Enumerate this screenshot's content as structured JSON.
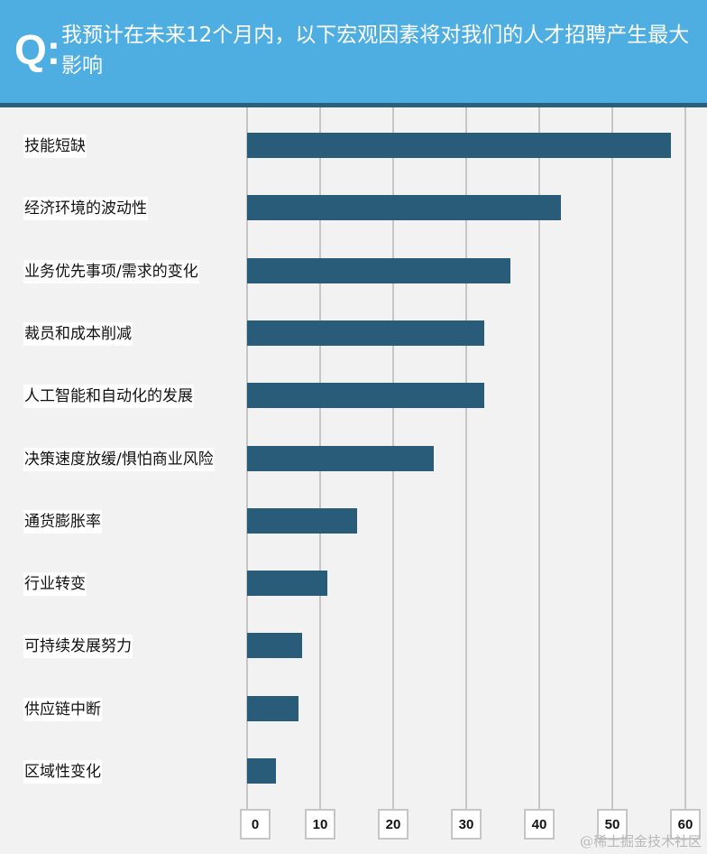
{
  "header": {
    "q_mark": "Q:",
    "title": "我预计在未来12个月内，以下宏观因素将对我们的人才招聘产生最大影响"
  },
  "colors": {
    "header_bg": "#4eaee2",
    "header_border": "#2a5f7f",
    "bar": "#285c78",
    "background": "#f2f2f2",
    "gridline": "#c6c6c6"
  },
  "watermark": "@稀土掘金技术社区",
  "chart_data": {
    "type": "bar",
    "orientation": "horizontal",
    "title": "我预计在未来12个月内，以下宏观因素将对我们的人才招聘产生最大影响",
    "xlabel": "",
    "ylabel": "",
    "xlim": [
      0,
      60
    ],
    "xticks": [
      0,
      10,
      20,
      30,
      40,
      50,
      60
    ],
    "grid": true,
    "categories": [
      "技能短缺",
      "经济环境的波动性",
      "业务优先事项/需求的变化",
      "裁员和成本削减",
      "人工智能和自动化的发展",
      "决策速度放缓/惧怕商业风险",
      "通货膨胀率",
      "行业转变",
      "可持续发展努力",
      "供应链中断",
      "区域性变化"
    ],
    "values": [
      58,
      43,
      36,
      32.5,
      32.5,
      25.5,
      15,
      11,
      7.5,
      7,
      4
    ]
  }
}
